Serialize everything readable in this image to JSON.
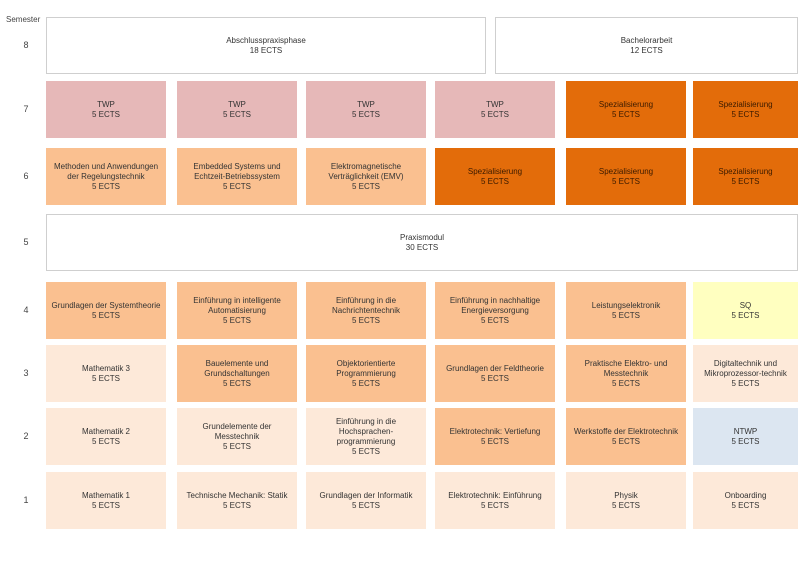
{
  "header": {
    "semester_label": "Semester"
  },
  "colors": {
    "white": "#ffffff",
    "pink": "#e6b8b8",
    "orange": "#e36c0a",
    "light": "#fac090",
    "pale": "#fde9d9",
    "yellow": "#ffffc0",
    "blue": "#dce6f1"
  },
  "rows": [
    {
      "semester": "8",
      "modules": [
        {
          "name": "Abschlusspraxisphase",
          "ects": "18 ECTS",
          "color": "white"
        },
        {
          "name": "Bachelorarbeit",
          "ects": "12 ECTS",
          "color": "white"
        }
      ]
    },
    {
      "semester": "7",
      "modules": [
        {
          "name": "TWP",
          "ects": "5 ECTS",
          "color": "pink"
        },
        {
          "name": "TWP",
          "ects": "5 ECTS",
          "color": "pink"
        },
        {
          "name": "TWP",
          "ects": "5 ECTS",
          "color": "pink"
        },
        {
          "name": "TWP",
          "ects": "5 ECTS",
          "color": "pink"
        },
        {
          "name": "Spezialisierung",
          "ects": "5 ECTS",
          "color": "orange"
        },
        {
          "name": "Spezialisierung",
          "ects": "5 ECTS",
          "color": "orange"
        }
      ]
    },
    {
      "semester": "6",
      "modules": [
        {
          "name": "Methoden und Anwendungen der Regelungstechnik",
          "ects": "5 ECTS",
          "color": "light"
        },
        {
          "name": "Embedded Systems und Echtzeit-Betriebssystem",
          "ects": "5 ECTS",
          "color": "light"
        },
        {
          "name": "Elektromagnetische Verträglichkeit (EMV)",
          "ects": "5 ECTS",
          "color": "light"
        },
        {
          "name": "Spezialisierung",
          "ects": "5 ECTS",
          "color": "orange"
        },
        {
          "name": "Spezialisierung",
          "ects": "5 ECTS",
          "color": "orange"
        },
        {
          "name": "Spezialisierung",
          "ects": "5 ECTS",
          "color": "orange"
        }
      ]
    },
    {
      "semester": "5",
      "modules": [
        {
          "name": "Praxismodul",
          "ects": "30 ECTS",
          "color": "white"
        }
      ]
    },
    {
      "semester": "4",
      "modules": [
        {
          "name": "Grundlagen der Systemtheorie",
          "ects": "5 ECTS",
          "color": "light"
        },
        {
          "name": "Einführung in intelligente Automatisierung",
          "ects": "5 ECTS",
          "color": "light"
        },
        {
          "name": "Einführung in die Nachrichtentechnik",
          "ects": "5 ECTS",
          "color": "light"
        },
        {
          "name": "Einführung in nachhaltige Energieversorgung",
          "ects": "5 ECTS",
          "color": "light"
        },
        {
          "name": "Leistungselektronik",
          "ects": "5 ECTS",
          "color": "light"
        },
        {
          "name": "SQ",
          "ects": "5 ECTS",
          "color": "yellow"
        }
      ]
    },
    {
      "semester": "3",
      "modules": [
        {
          "name": "Mathematik 3",
          "ects": "5 ECTS",
          "color": "pale"
        },
        {
          "name": "Bauelemente und Grundschaltungen",
          "ects": "5 ECTS",
          "color": "light"
        },
        {
          "name": "Objektorientierte Programmierung",
          "ects": "5 ECTS",
          "color": "light"
        },
        {
          "name": "Grundlagen der Feldtheorie",
          "ects": "5 ECTS",
          "color": "light"
        },
        {
          "name": "Praktische Elektro- und Messtechnik",
          "ects": "5 ECTS",
          "color": "light"
        },
        {
          "name": "Digitaltechnik und Mikroprozessor-technik",
          "ects": "5 ECTS",
          "color": "pale"
        }
      ]
    },
    {
      "semester": "2",
      "modules": [
        {
          "name": "Mathematik 2",
          "ects": "5 ECTS",
          "color": "pale"
        },
        {
          "name": "Grundelemente der Messtechnik",
          "ects": "5 ECTS",
          "color": "pale"
        },
        {
          "name": "Einführung in die Hochsprachen-programmierung",
          "ects": "5 ECTS",
          "color": "pale"
        },
        {
          "name": "Elektrotechnik: Vertiefung",
          "ects": "5 ECTS",
          "color": "light"
        },
        {
          "name": "Werkstoffe der Elektrotechnik",
          "ects": "5 ECTS",
          "color": "light"
        },
        {
          "name": "NTWP",
          "ects": "5 ECTS",
          "color": "blue"
        }
      ]
    },
    {
      "semester": "1",
      "modules": [
        {
          "name": "Mathematik 1",
          "ects": "5 ECTS",
          "color": "pale"
        },
        {
          "name": "Technische Mechanik: Statik",
          "ects": "5 ECTS",
          "color": "pale"
        },
        {
          "name": "Grundlagen der Informatik",
          "ects": "5 ECTS",
          "color": "pale"
        },
        {
          "name": "Elektrotechnik: Einführung",
          "ects": "5 ECTS",
          "color": "pale"
        },
        {
          "name": "Physik",
          "ects": "5 ECTS",
          "color": "pale"
        },
        {
          "name": "Onboarding",
          "ects": "5 ECTS",
          "color": "pale"
        }
      ]
    }
  ]
}
